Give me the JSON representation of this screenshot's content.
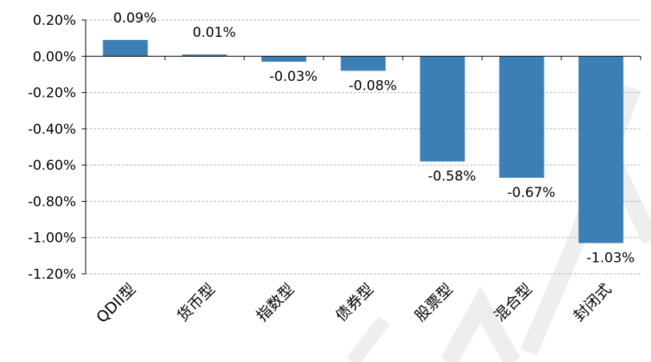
{
  "chart_data": {
    "type": "bar",
    "categories": [
      "QDII型",
      "货币型",
      "指数型",
      "债券型",
      "股票型",
      "混合型",
      "封闭式"
    ],
    "values": [
      0.09,
      0.01,
      -0.03,
      -0.08,
      -0.58,
      -0.67,
      -1.03
    ],
    "value_labels": [
      "0.09%",
      "0.01%",
      "-0.03%",
      "-0.08%",
      "-0.58%",
      "-0.67%",
      "-1.03%"
    ],
    "y_ticks": [
      0.2,
      0.0,
      -0.2,
      -0.4,
      -0.6,
      -0.8,
      -1.0,
      -1.2
    ],
    "y_tick_labels": [
      "0.20%",
      "0.00%",
      "-0.20%",
      "-0.40%",
      "-0.60%",
      "-0.80%",
      "-1.00%",
      "-1.20%"
    ],
    "ylim": [
      -1.2,
      0.2
    ],
    "grid": true,
    "legend": "none",
    "bar_color": "#3b7fb4"
  }
}
